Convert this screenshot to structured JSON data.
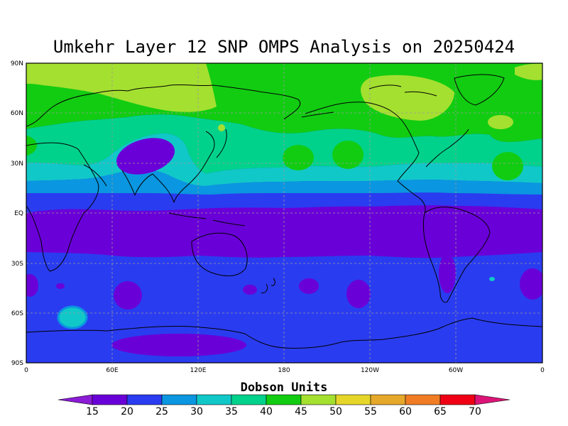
{
  "map": {
    "title": "Umkehr Layer 12 SNP OMPS Analysis on 20250424",
    "projection": "equirectangular",
    "lat_labels": [
      "90N",
      "60N",
      "30N",
      "EQ",
      "30S",
      "60S",
      "90S"
    ],
    "lon_labels": [
      "0",
      "60E",
      "120E",
      "180",
      "120W",
      "60W",
      "0"
    ],
    "grid": "dashed",
    "coastlines": true
  },
  "colorbar": {
    "title": "Dobson Units",
    "levels": [
      "15",
      "20",
      "25",
      "30",
      "35",
      "40",
      "45",
      "50",
      "55",
      "60",
      "65",
      "70"
    ],
    "colors": [
      "#8b1cd6",
      "#6a00d8",
      "#2a3cf0",
      "#0a96e0",
      "#11c8c8",
      "#00d28c",
      "#12cc12",
      "#a4e030",
      "#e6d62a",
      "#e6a82a",
      "#f07c24",
      "#f00014",
      "#dc1478"
    ]
  }
}
